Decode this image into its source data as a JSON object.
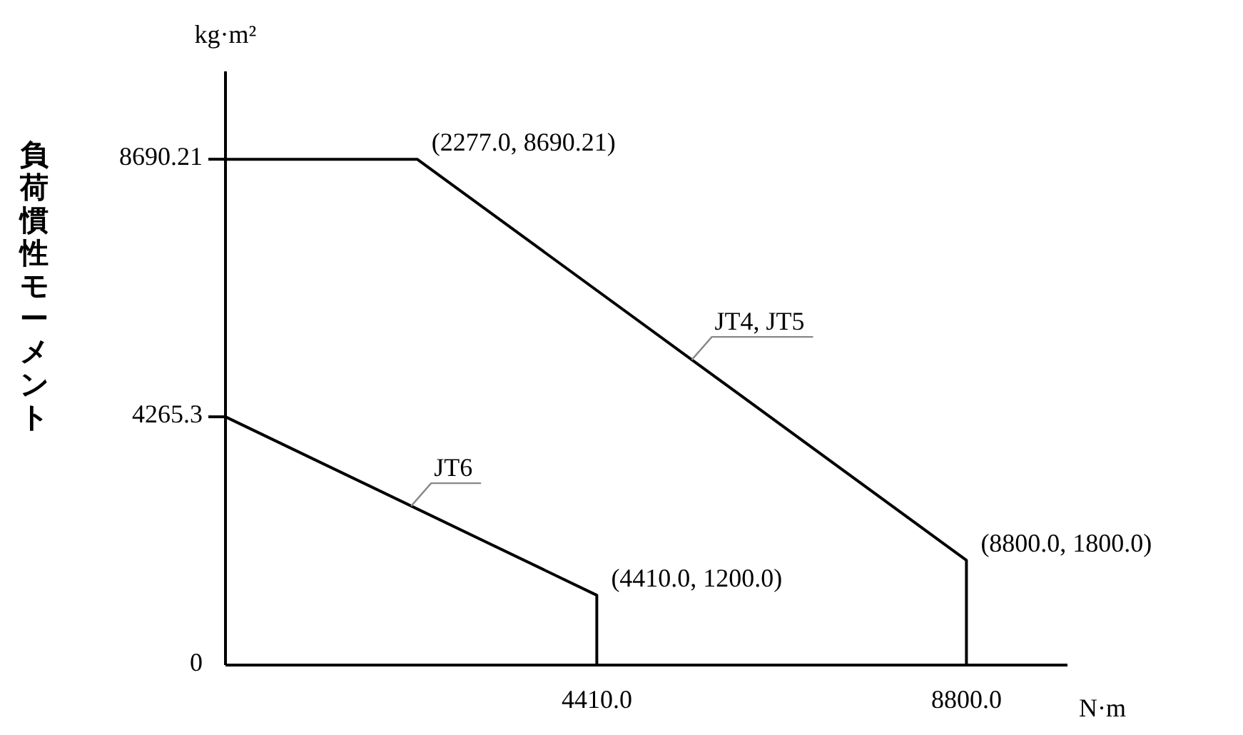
{
  "chart_data": {
    "type": "line",
    "ylabel": "負荷慣性モーメント",
    "xlabel": "N·m",
    "annotations": [
      "kg·m²",
      {
        "text": "(2277.0, 8690.21)",
        "x": 2277,
        "y": 8690.21
      },
      {
        "text": "(8800.0, 1800.0)",
        "x": 8800,
        "y": 1800
      },
      {
        "text": "(4410.0, 1200.0)",
        "x": 4410,
        "y": 1200
      }
    ],
    "series": [
      {
        "name": "JT4, JT5",
        "color": "#000000",
        "x": [
          0,
          2277,
          8800,
          8800
        ],
        "values": [
          8690.21,
          8690.21,
          1800,
          0
        ]
      },
      {
        "name": "JT6",
        "color": "#000000",
        "x": [
          0,
          4410,
          4410
        ],
        "values": [
          4265.3,
          1200,
          0
        ]
      }
    ],
    "xlim": [
      0,
      10000
    ],
    "ylim": [
      0,
      10200
    ],
    "xticks": [
      {
        "value": 4410,
        "label": "4410.0"
      },
      {
        "value": 8800,
        "label": "8800.0"
      }
    ],
    "yticks": [
      0,
      4265.3,
      8690.21
    ],
    "grid": false,
    "marker": "none",
    "line_style": "solid"
  }
}
